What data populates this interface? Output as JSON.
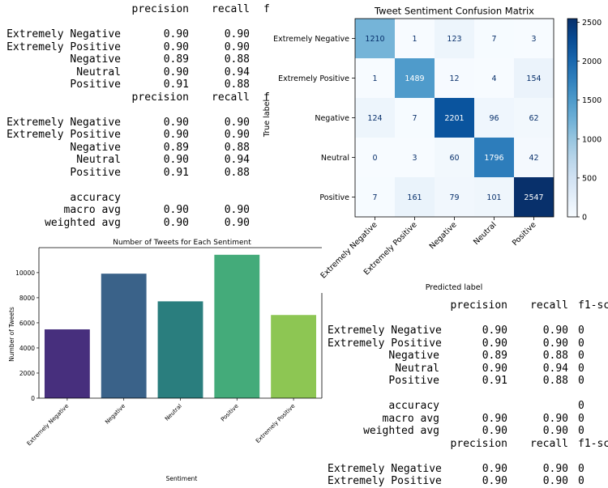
{
  "report_top": {
    "blocks": [
      {
        "header": [
          "precision",
          "recall",
          "f"
        ],
        "rows": [
          {
            "label": "Extremely Negative",
            "precision": "0.90",
            "recall": "0.90"
          },
          {
            "label": "Extremely Positive",
            "precision": "0.90",
            "recall": "0.90"
          },
          {
            "label": "Negative",
            "precision": "0.89",
            "recall": "0.88"
          },
          {
            "label": "Neutral",
            "precision": "0.90",
            "recall": "0.94"
          },
          {
            "label": "Positive",
            "precision": "0.91",
            "recall": "0.88"
          }
        ]
      },
      {
        "header": [
          "precision",
          "recall",
          "f"
        ],
        "rows": [
          {
            "label": "Extremely Negative",
            "precision": "0.90",
            "recall": "0.90"
          },
          {
            "label": "Extremely Positive",
            "precision": "0.90",
            "recall": "0.90"
          },
          {
            "label": "Negative",
            "precision": "0.89",
            "recall": "0.88"
          },
          {
            "label": "Neutral",
            "precision": "0.90",
            "recall": "0.94"
          },
          {
            "label": "Positive",
            "precision": "0.91",
            "recall": "0.88"
          }
        ],
        "summary": [
          {
            "label": "accuracy",
            "precision": "",
            "recall": ""
          },
          {
            "label": "macro avg",
            "precision": "0.90",
            "recall": "0.90"
          },
          {
            "label": "weighted avg",
            "precision": "0.90",
            "recall": "0.90"
          }
        ]
      }
    ]
  },
  "report_bottom": {
    "blocks": [
      {
        "header": [
          "precision",
          "recall",
          "f1-sc"
        ],
        "rows": [
          {
            "label": "Extremely Negative",
            "precision": "0.90",
            "recall": "0.90",
            "f1": "0"
          },
          {
            "label": "Extremely Positive",
            "precision": "0.90",
            "recall": "0.90",
            "f1": "0"
          },
          {
            "label": "Negative",
            "precision": "0.89",
            "recall": "0.88",
            "f1": "0"
          },
          {
            "label": "Neutral",
            "precision": "0.90",
            "recall": "0.94",
            "f1": "0"
          },
          {
            "label": "Positive",
            "precision": "0.91",
            "recall": "0.88",
            "f1": "0"
          }
        ],
        "summary": [
          {
            "label": "accuracy",
            "precision": "",
            "recall": "",
            "f1": "0"
          },
          {
            "label": "macro avg",
            "precision": "0.90",
            "recall": "0.90",
            "f1": "0"
          },
          {
            "label": "weighted avg",
            "precision": "0.90",
            "recall": "0.90",
            "f1": "0"
          }
        ]
      },
      {
        "header": [
          "precision",
          "recall",
          "f1-sc"
        ],
        "rows": [
          {
            "label": "Extremely Negative",
            "precision": "0.90",
            "recall": "0.90",
            "f1": "0"
          },
          {
            "label": "Extremely Positive",
            "precision": "0.90",
            "recall": "0.90",
            "f1": "0"
          }
        ]
      }
    ]
  },
  "chart_data": [
    {
      "type": "heatmap",
      "title": "Tweet Sentiment Confusion Matrix",
      "xlabel": "Predicted label",
      "ylabel": "True label",
      "categories": [
        "Extremely Negative",
        "Extremely Positive",
        "Negative",
        "Neutral",
        "Positive"
      ],
      "matrix": [
        [
          1210,
          1,
          123,
          7,
          3
        ],
        [
          1,
          1489,
          12,
          4,
          154
        ],
        [
          124,
          7,
          2201,
          96,
          62
        ],
        [
          0,
          3,
          60,
          1796,
          42
        ],
        [
          7,
          161,
          79,
          101,
          2547
        ]
      ],
      "colorbar": {
        "ticks": [
          0,
          500,
          1000,
          1500,
          2000,
          2500
        ],
        "range": [
          0,
          2547
        ],
        "colormap": "Blues"
      }
    },
    {
      "type": "bar",
      "title": "Number of Tweets for Each Sentiment",
      "xlabel": "Sentiment",
      "ylabel": "Number of Tweets",
      "categories": [
        "Extremely Negative",
        "Negative",
        "Neutral",
        "Positive",
        "Extremely Positive"
      ],
      "values": [
        5480,
        9917,
        7713,
        11422,
        6624
      ],
      "colors": [
        "#472f7d",
        "#3a6289",
        "#2a7e7e",
        "#44ab7a",
        "#8dc653"
      ],
      "yticks": [
        0,
        2000,
        4000,
        6000,
        8000,
        10000
      ],
      "ylim": [
        0,
        11990
      ]
    }
  ]
}
